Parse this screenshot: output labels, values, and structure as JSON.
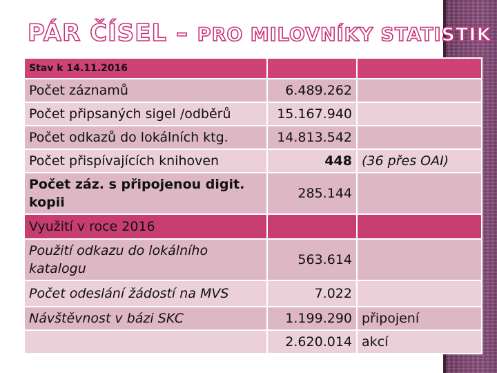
{
  "title": {
    "part1": "PÁR ČÍSEL – ",
    "part2": "PRO MILOVNÍKY STATISTIK"
  },
  "table": {
    "header_label": "Stav k 14.11.2016",
    "rows": [
      {
        "label": "Počet záznamů",
        "value": "6.489.262",
        "note": ""
      },
      {
        "label": "Počet připsaných sigel /odběrů",
        "value": "15.167.940",
        "note": ""
      },
      {
        "label": "Počet odkazů do lokálních ktg.",
        "value": "14.813.542",
        "note": ""
      },
      {
        "label": "Počet přispívajících knihoven",
        "value": "448",
        "note": "(36 přes OAI)"
      },
      {
        "label": "Počet záz. s připojenou digit. kopii",
        "value": "285.144",
        "note": ""
      }
    ],
    "subheader_label": "Využití v roce 2016",
    "usage_rows": [
      {
        "label": "Použití odkazu do lokálního katalogu",
        "value": "563.614",
        "note": ""
      },
      {
        "label": "Počet odeslání žádostí na MVS",
        "value": "7.022",
        "note": ""
      },
      {
        "label": "Návštěvnost v bázi SKC",
        "value": "1.199.290",
        "note": "připojení"
      },
      {
        "label": "",
        "value": "2.620.014",
        "note": "akcí"
      }
    ]
  },
  "colors": {
    "accent": "#c8327a",
    "header_bg": "#cf4275",
    "row_light": "#ebd0d9",
    "row_dark": "#ddb7c3",
    "side_strip": "#7e4570"
  }
}
